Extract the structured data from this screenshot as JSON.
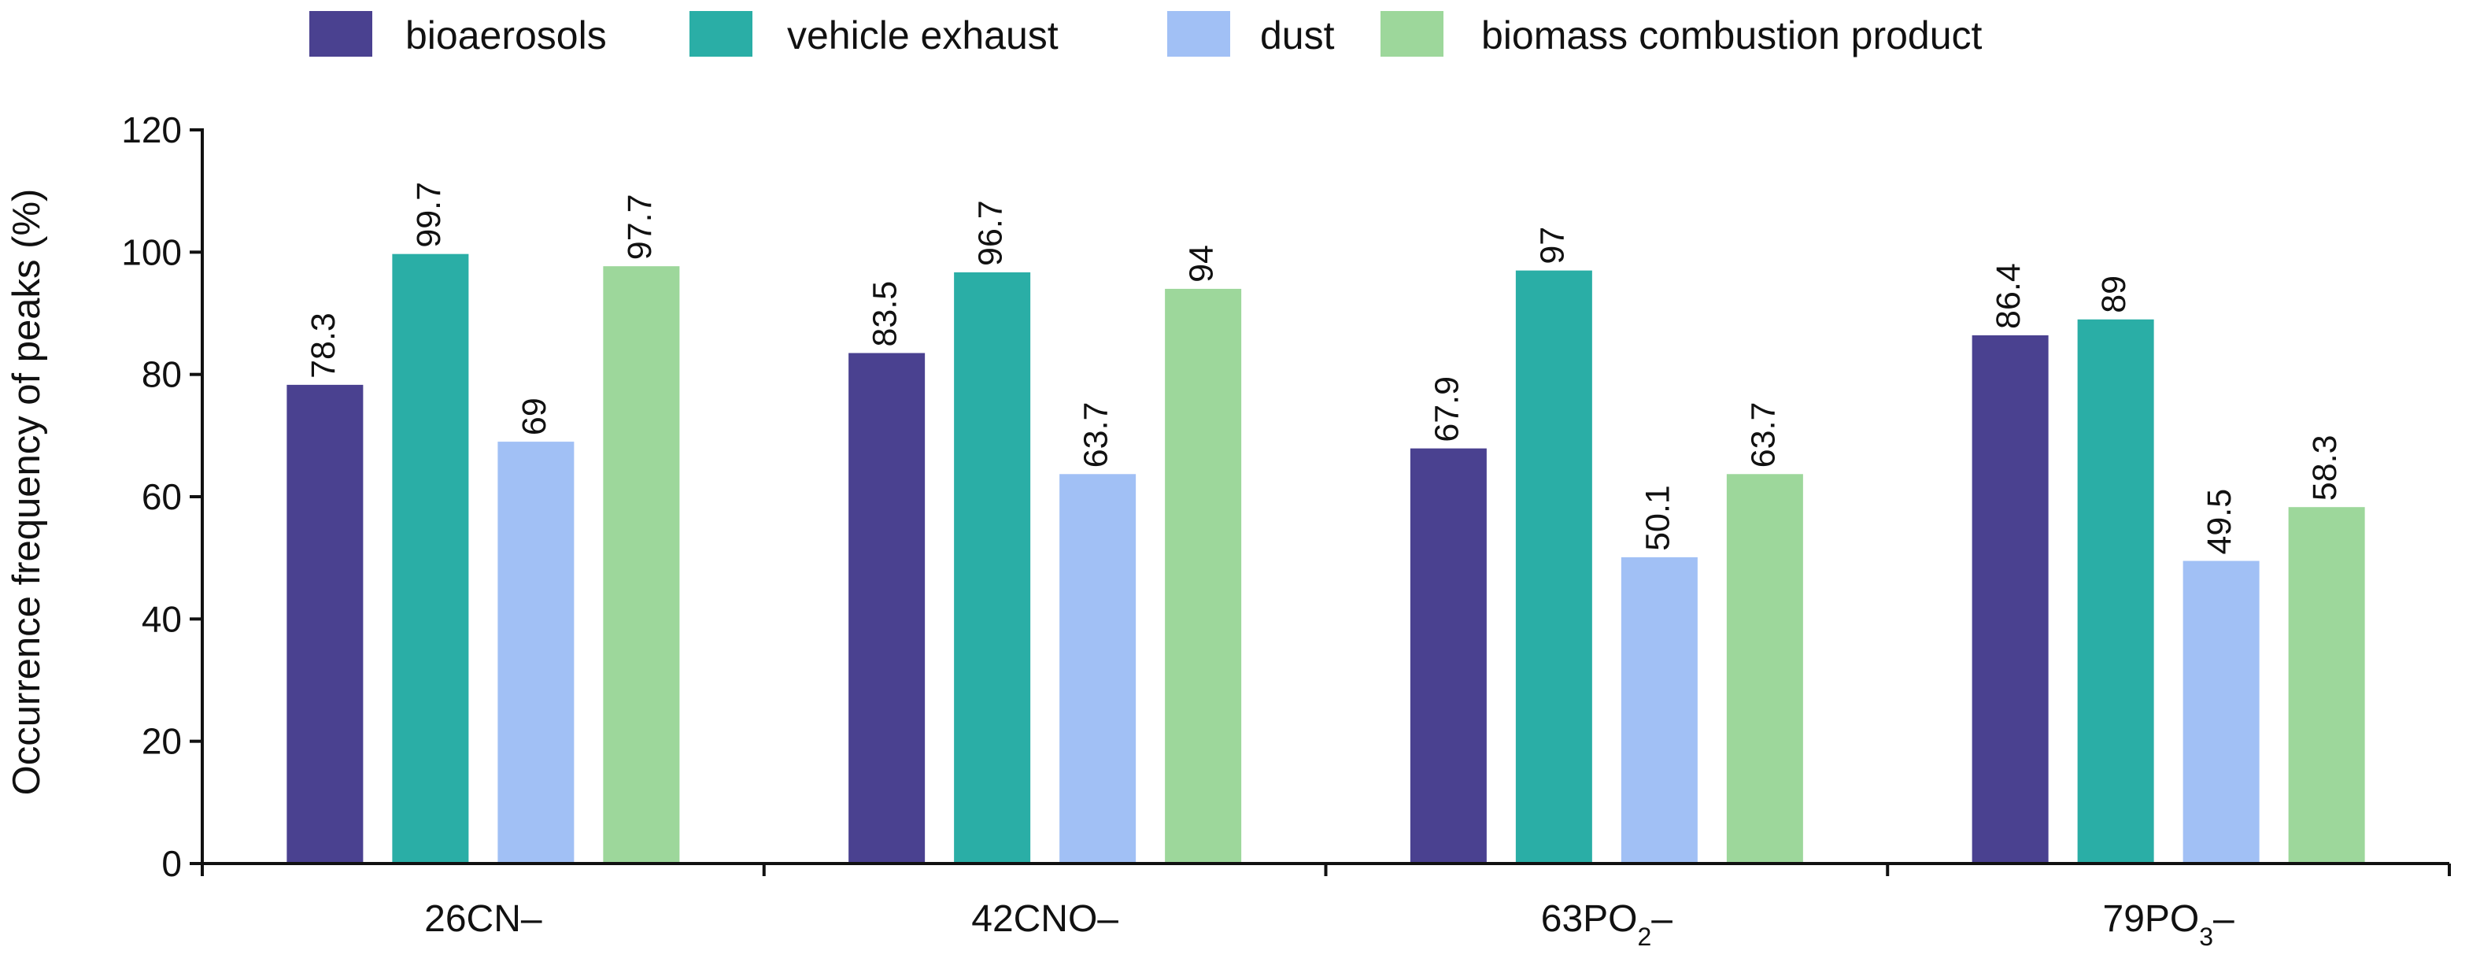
{
  "chart_data": {
    "type": "bar",
    "title": "",
    "xlabel": "",
    "ylabel": "Occurrence frequency of peaks (%)",
    "ylim": [
      0,
      120
    ],
    "yticks": [
      0,
      20,
      40,
      60,
      80,
      100,
      120
    ],
    "grid": false,
    "legend_position": "top",
    "categories": [
      {
        "base": "26CN–",
        "sub": "",
        "tail": ""
      },
      {
        "base": "42CNO–",
        "sub": "",
        "tail": ""
      },
      {
        "base": "63PO",
        "sub": "2",
        "tail": "–"
      },
      {
        "base": "79PO",
        "sub": "3",
        "tail": "–"
      }
    ],
    "series": [
      {
        "name": "bioaerosols",
        "color": "#4a4190",
        "values": [
          78.3,
          83.5,
          67.9,
          86.4
        ],
        "labels": [
          "78.3",
          "83.5",
          "67.9",
          "86.4"
        ]
      },
      {
        "name": "vehicle exhaust",
        "color": "#2aaea6",
        "values": [
          99.7,
          96.7,
          97,
          89
        ],
        "labels": [
          "99.7",
          "96.7",
          "97",
          "89"
        ]
      },
      {
        "name": "dust",
        "color": "#a1c0f5",
        "values": [
          69,
          63.7,
          50.1,
          49.5
        ],
        "labels": [
          "69",
          "63.7",
          "50.1",
          "49.5"
        ]
      },
      {
        "name": "biomass combustion product",
        "color": "#9dd79b",
        "values": [
          97.7,
          94,
          63.7,
          58.3
        ],
        "labels": [
          "97.7",
          "94",
          "63.7",
          "58.3"
        ]
      }
    ]
  }
}
